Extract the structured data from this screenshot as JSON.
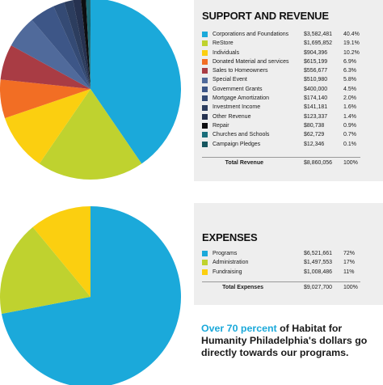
{
  "revenue": {
    "title": "SUPPORT AND REVENUE",
    "total_label": "Total Revenue",
    "total_amount": "$8,860,056",
    "total_percent": "100%"
  },
  "expenses": {
    "title": "EXPENSES",
    "total_label": "Total Expenses",
    "total_amount": "$9,027,700",
    "total_percent": "100%"
  },
  "callout": {
    "highlight": "Over 70 percent",
    "rest": " of Habitat for Humanity Philadelphia's dollars go directly towards our programs."
  },
  "chart_data": [
    {
      "type": "pie",
      "title": "SUPPORT AND REVENUE",
      "slices": [
        {
          "label": "Corporations and Foundations",
          "amount": "$3,582,481",
          "percent": "40.4%",
          "value": 40.4,
          "color": "#1ba9da"
        },
        {
          "label": "ReStore",
          "amount": "$1,695,852",
          "percent": "19.1%",
          "value": 19.1,
          "color": "#bfd22f"
        },
        {
          "label": "Individuals",
          "amount": "$904,396",
          "percent": "10.2%",
          "value": 10.2,
          "color": "#fbcf10"
        },
        {
          "label": "Donated Material and services",
          "amount": "$615,199",
          "percent": "6.9%",
          "value": 6.9,
          "color": "#f26e24"
        },
        {
          "label": "Sales to Homeowners",
          "amount": "$556,677",
          "percent": "6.3%",
          "value": 6.3,
          "color": "#a93c44"
        },
        {
          "label": "Special Event",
          "amount": "$510,980",
          "percent": "5.8%",
          "value": 5.8,
          "color": "#506a9b"
        },
        {
          "label": "Government Grants",
          "amount": "$400,000",
          "percent": "4.5%",
          "value": 4.5,
          "color": "#3d5687"
        },
        {
          "label": "Mortgage Amortization",
          "amount": "$174,140",
          "percent": "2.0%",
          "value": 2.0,
          "color": "#344a74"
        },
        {
          "label": "Investment Income",
          "amount": "$141,181",
          "percent": "1.6%",
          "value": 1.6,
          "color": "#2c3d5e"
        },
        {
          "label": "Other Revenue",
          "amount": "$123,337",
          "percent": "1.4%",
          "value": 1.4,
          "color": "#263250"
        },
        {
          "label": "Repair",
          "amount": "$80,738",
          "percent": "0.9%",
          "value": 0.9,
          "color": "#0e0e10"
        },
        {
          "label": "Churches and Schools",
          "amount": "$62,729",
          "percent": "0.7%",
          "value": 0.7,
          "color": "#1a6d7a"
        },
        {
          "label": "Campaign Pledges",
          "amount": "$12,346",
          "percent": "0.1%",
          "value": 0.1,
          "color": "#17565f"
        }
      ]
    },
    {
      "type": "pie",
      "title": "EXPENSES",
      "slices": [
        {
          "label": "Programs",
          "amount": "$6,521,661",
          "percent": "72%",
          "value": 72,
          "color": "#1ba9da"
        },
        {
          "label": "Administration",
          "amount": "$1,497,553",
          "percent": "17%",
          "value": 17,
          "color": "#bfd22f"
        },
        {
          "label": "Fundraising",
          "amount": "$1,008,486",
          "percent": "11%",
          "value": 11,
          "color": "#fbcf10"
        }
      ]
    }
  ]
}
